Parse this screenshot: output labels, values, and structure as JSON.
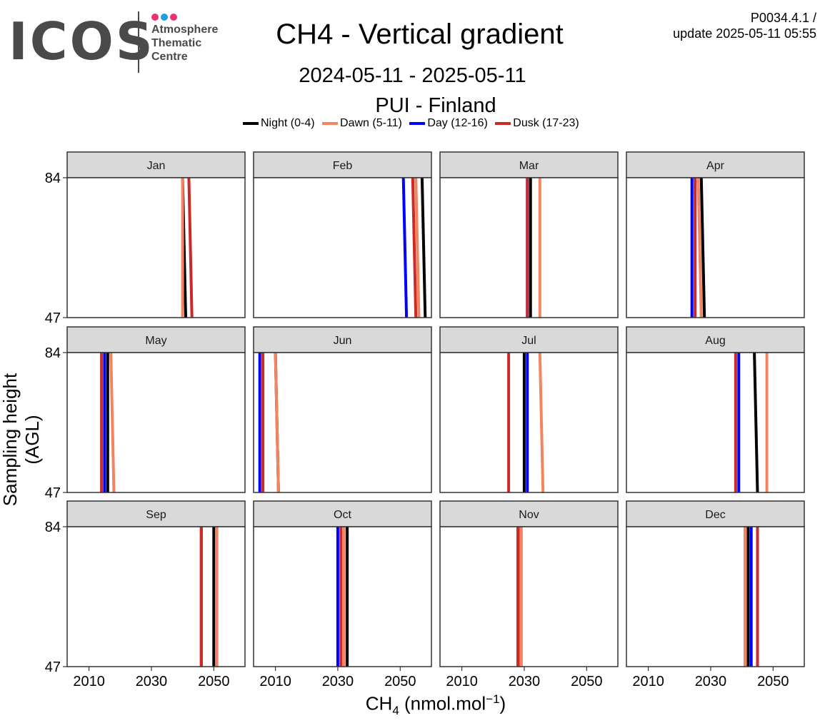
{
  "header": {
    "logo_text": "ICOS",
    "logo_subtitle": [
      "Atmosphere",
      "Thematic",
      "Centre"
    ],
    "logo_dot_colors": [
      "#e8336e",
      "#1e9fe0",
      "#e8336e"
    ],
    "title": "CH4 - Vertical gradient",
    "subtitle": "2024-05-11 - 2025-05-11",
    "station": "PUI - Finland",
    "version_line1": "P0034.4.1 /",
    "version_line2": "update  2025-05-11 05:55"
  },
  "legend": [
    {
      "label": "Night (0-4)",
      "color": "#000000"
    },
    {
      "label": "Dawn (5-11)",
      "color": "#f4845f"
    },
    {
      "label": "Day (12-16)",
      "color": "#0000ff"
    },
    {
      "label": "Dusk (17-23)",
      "color": "#cc2929"
    }
  ],
  "axes": {
    "ylabel": "Sampling height (AGL)",
    "xlabel_main": "CH",
    "xlabel_sub": "4",
    "xlabel_unit": " (nmol.mol",
    "xlabel_sup": "−1",
    "xlabel_close": ")"
  },
  "chart_data": {
    "type": "line",
    "xlabel": "CH4 (nmol.mol-1)",
    "ylabel": "Sampling height (AGL)",
    "xlim": [
      2003,
      2060
    ],
    "ylim": [
      47,
      84
    ],
    "xticks": [
      2010,
      2030,
      2050
    ],
    "yticks": [
      47,
      84
    ],
    "panels": [
      {
        "name": "Jan",
        "series": [
          {
            "name": "Night (0-4)",
            "x": [
              2041,
              2040
            ],
            "y": [
              47,
              84
            ]
          },
          {
            "name": "Dawn (5-11)",
            "x": [
              2040,
              2040
            ],
            "y": [
              47,
              84
            ]
          },
          {
            "name": "Dusk (17-23)",
            "x": [
              2043,
              2042
            ],
            "y": [
              47,
              84
            ]
          }
        ]
      },
      {
        "name": "Feb",
        "series": [
          {
            "name": "Night (0-4)",
            "x": [
              2058,
              2057
            ],
            "y": [
              47,
              84
            ]
          },
          {
            "name": "Dawn (5-11)",
            "x": [
              2056,
              2055
            ],
            "y": [
              47,
              84
            ]
          },
          {
            "name": "Day (12-16)",
            "x": [
              2052,
              2051
            ],
            "y": [
              47,
              84
            ]
          },
          {
            "name": "Dusk (17-23)",
            "x": [
              2055,
              2054
            ],
            "y": [
              47,
              84
            ]
          }
        ]
      },
      {
        "name": "Mar",
        "series": [
          {
            "name": "Night (0-4)",
            "x": [
              2032,
              2032
            ],
            "y": [
              47,
              84
            ]
          },
          {
            "name": "Dawn (5-11)",
            "x": [
              2035,
              2035
            ],
            "y": [
              47,
              84
            ]
          },
          {
            "name": "Day (12-16)",
            "x": [
              2031,
              2031
            ],
            "y": [
              47,
              84
            ]
          },
          {
            "name": "Dusk (17-23)",
            "x": [
              2031,
              2031
            ],
            "y": [
              47,
              84
            ]
          }
        ]
      },
      {
        "name": "Apr",
        "series": [
          {
            "name": "Night (0-4)",
            "x": [
              2028,
              2027
            ],
            "y": [
              47,
              84
            ]
          },
          {
            "name": "Dawn (5-11)",
            "x": [
              2027,
              2026
            ],
            "y": [
              47,
              84
            ]
          },
          {
            "name": "Day (12-16)",
            "x": [
              2024,
              2024
            ],
            "y": [
              47,
              84
            ]
          },
          {
            "name": "Dusk (17-23)",
            "x": [
              2025,
              2025
            ],
            "y": [
              47,
              84
            ]
          }
        ]
      },
      {
        "name": "May",
        "series": [
          {
            "name": "Night (0-4)",
            "x": [
              2016,
              2016
            ],
            "y": [
              47,
              84
            ]
          },
          {
            "name": "Dawn (5-11)",
            "x": [
              2018,
              2017
            ],
            "y": [
              47,
              84
            ]
          },
          {
            "name": "Day (12-16)",
            "x": [
              2015,
              2015
            ],
            "y": [
              47,
              84
            ]
          },
          {
            "name": "Dusk (17-23)",
            "x": [
              2014,
              2014
            ],
            "y": [
              47,
              84
            ]
          }
        ]
      },
      {
        "name": "Jun",
        "series": [
          {
            "name": "Night (0-4)",
            "x": [
              2011,
              2010
            ],
            "y": [
              47,
              84
            ]
          },
          {
            "name": "Dawn (5-11)",
            "x": [
              2011,
              2010
            ],
            "y": [
              47,
              84
            ]
          },
          {
            "name": "Day (12-16)",
            "x": [
              2005,
              2005
            ],
            "y": [
              47,
              84
            ]
          },
          {
            "name": "Dusk (17-23)",
            "x": [
              2006,
              2006
            ],
            "y": [
              47,
              84
            ]
          }
        ]
      },
      {
        "name": "Jul",
        "series": [
          {
            "name": "Night (0-4)",
            "x": [
              2030,
              2030
            ],
            "y": [
              47,
              84
            ]
          },
          {
            "name": "Dawn (5-11)",
            "x": [
              2036,
              2035
            ],
            "y": [
              47,
              84
            ]
          },
          {
            "name": "Day (12-16)",
            "x": [
              2031,
              2031
            ],
            "y": [
              47,
              84
            ]
          },
          {
            "name": "Dusk (17-23)",
            "x": [
              2025,
              2025
            ],
            "y": [
              47,
              84
            ]
          }
        ]
      },
      {
        "name": "Aug",
        "series": [
          {
            "name": "Night (0-4)",
            "x": [
              2045,
              2044
            ],
            "y": [
              47,
              84
            ]
          },
          {
            "name": "Dawn (5-11)",
            "x": [
              2048,
              2048
            ],
            "y": [
              47,
              84
            ]
          },
          {
            "name": "Day (12-16)",
            "x": [
              2039,
              2039
            ],
            "y": [
              47,
              84
            ]
          },
          {
            "name": "Dusk (17-23)",
            "x": [
              2038,
              2038
            ],
            "y": [
              47,
              84
            ]
          }
        ]
      },
      {
        "name": "Sep",
        "series": [
          {
            "name": "Night (0-4)",
            "x": [
              2050,
              2050
            ],
            "y": [
              47,
              84
            ]
          },
          {
            "name": "Dawn (5-11)",
            "x": [
              2051,
              2051
            ],
            "y": [
              47,
              84
            ]
          },
          {
            "name": "Day (12-16)",
            "x": [
              2046,
              2046
            ],
            "y": [
              47,
              84
            ]
          },
          {
            "name": "Dusk (17-23)",
            "x": [
              2046,
              2046
            ],
            "y": [
              47,
              84
            ]
          }
        ]
      },
      {
        "name": "Oct",
        "series": [
          {
            "name": "Night (0-4)",
            "x": [
              2033,
              2033
            ],
            "y": [
              47,
              84
            ]
          },
          {
            "name": "Dawn (5-11)",
            "x": [
              2032,
              2032
            ],
            "y": [
              47,
              84
            ]
          },
          {
            "name": "Day (12-16)",
            "x": [
              2030,
              2030
            ],
            "y": [
              47,
              84
            ]
          },
          {
            "name": "Dusk (17-23)",
            "x": [
              2031,
              2031
            ],
            "y": [
              47,
              84
            ]
          }
        ]
      },
      {
        "name": "Nov",
        "series": [
          {
            "name": "Night (0-4)",
            "x": [
              2029,
              2029
            ],
            "y": [
              47,
              84
            ]
          },
          {
            "name": "Dawn (5-11)",
            "x": [
              2029,
              2029
            ],
            "y": [
              47,
              84
            ]
          },
          {
            "name": "Day (12-16)",
            "x": [
              2028,
              2028
            ],
            "y": [
              47,
              84
            ]
          },
          {
            "name": "Dusk (17-23)",
            "x": [
              2028,
              2028
            ],
            "y": [
              47,
              84
            ]
          }
        ]
      },
      {
        "name": "Dec",
        "series": [
          {
            "name": "Night (0-4)",
            "x": [
              2042,
              2042
            ],
            "y": [
              47,
              84
            ]
          },
          {
            "name": "Dawn (5-11)",
            "x": [
              2041,
              2041
            ],
            "y": [
              47,
              84
            ]
          },
          {
            "name": "Day (12-16)",
            "x": [
              2043,
              2043
            ],
            "y": [
              47,
              84
            ]
          },
          {
            "name": "Dusk (17-23)",
            "x": [
              2045,
              2045
            ],
            "y": [
              47,
              84
            ]
          }
        ]
      }
    ]
  }
}
